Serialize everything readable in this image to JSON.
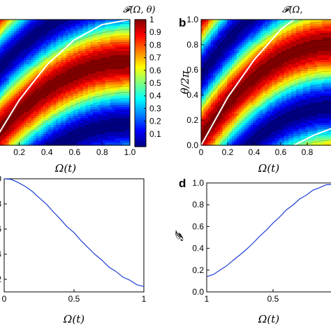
{
  "panel_labels": {
    "b": "b",
    "d": "d"
  },
  "chart_data": [
    {
      "id": "a",
      "type": "heatmap",
      "title": "𝓕(Ω, θ)",
      "xlabel": "Ω(t)",
      "ylabel": "",
      "xlim": [
        0,
        1
      ],
      "ylim": [
        0,
        1
      ],
      "x_ticks": [
        "0",
        "0.2",
        "0.4",
        "0.6",
        "0.8",
        "1.0"
      ],
      "y_ticks": [],
      "colorbar": {
        "min": 0,
        "max": 1,
        "ticks": [
          "0.1",
          "0.2",
          "0.3",
          "0.4",
          "0.5",
          "0.6",
          "0.7",
          "0.8",
          "0.9",
          "1"
        ]
      },
      "colormap": "jet",
      "function": "F = cos^2(pi*(theta - 0.3*Omega*(2-Omega)) + 0.05)",
      "white_curves": [
        {
          "x": [
            0,
            0.2,
            0.4,
            0.6,
            0.8,
            1.0
          ],
          "y": [
            0.0,
            0.36,
            0.64,
            0.84,
            0.96,
            1.0
          ]
        }
      ]
    },
    {
      "id": "b",
      "type": "heatmap",
      "title": "𝓕(Ω,",
      "xlabel": "Ω(t)",
      "ylabel": "θ/2π",
      "xlim": [
        0,
        1
      ],
      "ylim": [
        0,
        1
      ],
      "x_ticks": [
        "0",
        "0.2",
        "0.4",
        "0.6",
        "0.8",
        "1."
      ],
      "y_ticks": [
        "0.0",
        "0.2",
        "0.4",
        "0.6",
        "0.8",
        "1.0"
      ],
      "colormap": "jet",
      "white_curves": [
        {
          "x": [
            0,
            0.2,
            0.4,
            0.6,
            0.7
          ],
          "y": [
            0.0,
            0.38,
            0.68,
            0.92,
            1.0
          ]
        },
        {
          "x": [
            0.7,
            0.85,
            1.0
          ],
          "y": [
            0.0,
            0.08,
            0.14
          ]
        }
      ]
    },
    {
      "id": "c",
      "type": "line",
      "xlabel": "Ω(t)",
      "ylabel": "",
      "xlim": [
        0,
        1
      ],
      "ylim": [
        0.1,
        1.0
      ],
      "x_ticks": [
        "0",
        "0.5",
        "1"
      ],
      "y_ticks": [
        ".0",
        ".8",
        ".6",
        ".4",
        ".2"
      ],
      "series": [
        {
          "color": "#1f3fd6",
          "x": [
            0,
            0.05,
            0.1,
            0.15,
            0.2,
            0.25,
            0.3,
            0.35,
            0.4,
            0.45,
            0.5,
            0.55,
            0.6,
            0.65,
            0.7,
            0.75,
            0.8,
            0.85,
            0.9,
            0.95,
            1.0
          ],
          "y": [
            1.0,
            0.995,
            0.97,
            0.94,
            0.9,
            0.85,
            0.8,
            0.74,
            0.68,
            0.62,
            0.57,
            0.51,
            0.45,
            0.4,
            0.35,
            0.3,
            0.26,
            0.22,
            0.19,
            0.16,
            0.14
          ]
        }
      ]
    },
    {
      "id": "d",
      "type": "line",
      "xlabel": "Ω(t)",
      "ylabel": "𝓕̄",
      "xlim": [
        0,
        1
      ],
      "ylim": [
        0,
        1
      ],
      "x_ticks": [
        "1",
        "0.5"
      ],
      "y_ticks": [
        "0.0",
        "0.2",
        "0.4",
        "0.6",
        "0.8",
        "1.0"
      ],
      "series": [
        {
          "color": "#1f3fd6",
          "x": [
            0,
            0.05,
            0.1,
            0.15,
            0.2,
            0.25,
            0.3,
            0.35,
            0.4,
            0.45,
            0.5,
            0.55,
            0.6,
            0.65,
            0.7,
            0.75,
            0.8,
            0.85,
            0.9,
            0.95
          ],
          "y": [
            0.14,
            0.16,
            0.2,
            0.24,
            0.29,
            0.34,
            0.39,
            0.45,
            0.51,
            0.57,
            0.63,
            0.69,
            0.75,
            0.8,
            0.85,
            0.89,
            0.93,
            0.96,
            0.98,
            0.99
          ]
        }
      ]
    }
  ]
}
